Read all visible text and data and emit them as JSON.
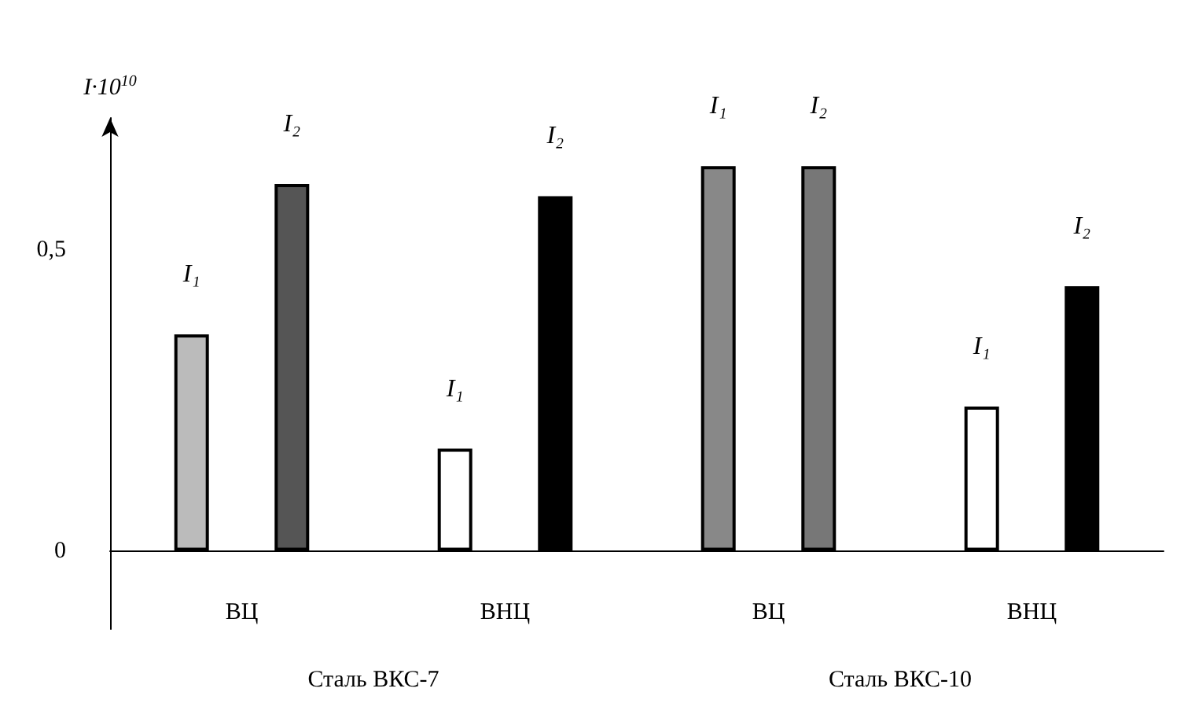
{
  "chart_data": {
    "type": "bar",
    "ylabel": "I·10$^{10}$",
    "categories": [
      "ВЦ",
      "ВНЦ",
      "ВЦ",
      "ВНЦ"
    ],
    "series": [
      {
        "name": "I₁",
        "colors": [
          "#bbbbbb",
          "#ffffff",
          "#888888",
          "#ffffff"
        ],
        "values": [
          0.36,
          0.17,
          0.64,
          0.24
        ]
      },
      {
        "name": "I₂",
        "colors": [
          "#555555",
          "#000000",
          "#777777",
          "#000000"
        ],
        "values": [
          0.61,
          0.59,
          0.64,
          0.44
        ]
      }
    ],
    "ylim": [
      -0.13,
      0.72
    ],
    "yticks": [
      0,
      {
        "value": 0.5,
        "label": "0,5"
      }
    ],
    "annotations": [
      "Сталь ВКС-7",
      "Сталь ВКС-10"
    ],
    "legend": false
  }
}
